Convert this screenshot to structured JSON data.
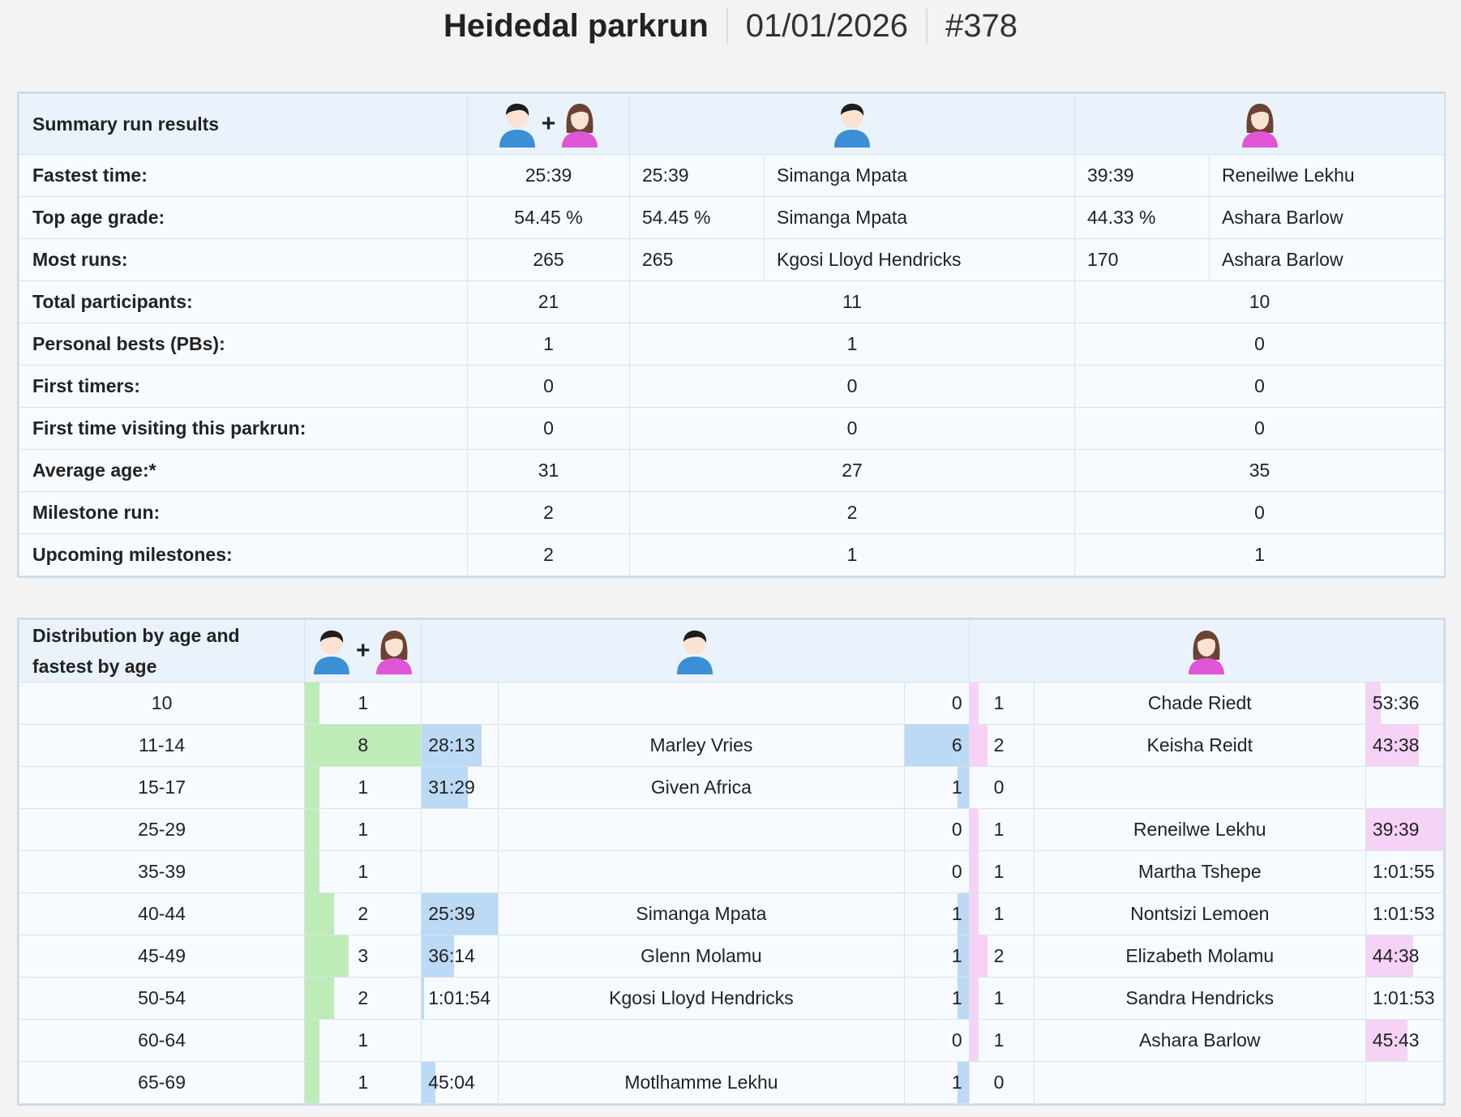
{
  "header": {
    "title": "Heidedal parkrun",
    "date": "01/01/2026",
    "run_number": "#378"
  },
  "colors": {
    "total_bar": "#bdecb6",
    "male_bar": "#bcd9f5",
    "female_bar": "#f6d2f6",
    "male_shirt": "#3a8fd6",
    "female_shirt": "#e055d6"
  },
  "icons": {
    "all": "male-and-female-icons",
    "male": "male-runner-icon",
    "female": "female-runner-icon",
    "plus": "+"
  },
  "summary": {
    "title": "Summary run results",
    "rows": [
      {
        "label": "Fastest time:",
        "all": "25:39",
        "male_val": "25:39",
        "male_name": "Simanga Mpata",
        "female_val": "39:39",
        "female_name": "Reneilwe Lekhu"
      },
      {
        "label": "Top age grade:",
        "all": "54.45 %",
        "male_val": "54.45 %",
        "male_name": "Simanga Mpata",
        "female_val": "44.33 %",
        "female_name": "Ashara Barlow"
      },
      {
        "label": "Most runs:",
        "all": "265",
        "male_val": "265",
        "male_name": "Kgosi Lloyd Hendricks",
        "female_val": "170",
        "female_name": "Ashara Barlow"
      },
      {
        "label": "Total participants:",
        "all": "21",
        "male": "11",
        "female": "10"
      },
      {
        "label": "Personal bests (PBs):",
        "all": "1",
        "male": "1",
        "female": "0"
      },
      {
        "label": "First timers:",
        "all": "0",
        "male": "0",
        "female": "0"
      },
      {
        "label": "First time visiting this parkrun:",
        "all": "0",
        "male": "0",
        "female": "0"
      },
      {
        "label": "Average age:*",
        "all": "31",
        "male": "27",
        "female": "35"
      },
      {
        "label": "Milestone run:",
        "all": "2",
        "male": "2",
        "female": "0"
      },
      {
        "label": "Upcoming milestones:",
        "all": "2",
        "male": "1",
        "female": "1"
      }
    ]
  },
  "distribution": {
    "title": "Distribution by age and fastest by age",
    "title_line1": "Distribution by age and",
    "title_line2": "fastest by age",
    "rows": [
      {
        "age": "10",
        "total": "1",
        "m_time": "",
        "m_name": "",
        "m_count": "0",
        "f_count": "1",
        "f_name": "Chade Riedt",
        "f_time": "53:36",
        "m_time_frac": 0,
        "f_time_frac": 0.19
      },
      {
        "age": "11-14",
        "total": "8",
        "m_time": "28:13",
        "m_name": "Marley Vries",
        "m_count": "6",
        "f_count": "2",
        "f_name": "Keisha Reidt",
        "f_time": "43:38",
        "m_time_frac": 0.78,
        "f_time_frac": 0.68
      },
      {
        "age": "15-17",
        "total": "1",
        "m_time": "31:29",
        "m_name": "Given Africa",
        "m_count": "1",
        "f_count": "0",
        "f_name": "",
        "f_time": "",
        "m_time_frac": 0.6,
        "f_time_frac": 0
      },
      {
        "age": "25-29",
        "total": "1",
        "m_time": "",
        "m_name": "",
        "m_count": "0",
        "f_count": "1",
        "f_name": "Reneilwe Lekhu",
        "f_time": "39:39",
        "m_time_frac": 0,
        "f_time_frac": 1.0
      },
      {
        "age": "35-39",
        "total": "1",
        "m_time": "",
        "m_name": "",
        "m_count": "0",
        "f_count": "1",
        "f_name": "Martha Tshepe",
        "f_time": "1:01:55",
        "m_time_frac": 0,
        "f_time_frac": 0
      },
      {
        "age": "40-44",
        "total": "2",
        "m_time": "25:39",
        "m_name": "Simanga Mpata",
        "m_count": "1",
        "f_count": "1",
        "f_name": "Nontsizi Lemoen",
        "f_time": "1:01:53",
        "m_time_frac": 1.0,
        "f_time_frac": 0
      },
      {
        "age": "45-49",
        "total": "3",
        "m_time": "36:14",
        "m_name": "Glenn Molamu",
        "m_count": "1",
        "f_count": "2",
        "f_name": "Elizabeth Molamu",
        "f_time": "44:38",
        "m_time_frac": 0.42,
        "f_time_frac": 0.61
      },
      {
        "age": "50-54",
        "total": "2",
        "m_time": "1:01:54",
        "m_name": "Kgosi Lloyd Hendricks",
        "m_count": "1",
        "f_count": "1",
        "f_name": "Sandra Hendricks",
        "f_time": "1:01:53",
        "m_time_frac": 0.03,
        "f_time_frac": 0
      },
      {
        "age": "60-64",
        "total": "1",
        "m_time": "",
        "m_name": "",
        "m_count": "0",
        "f_count": "1",
        "f_name": "Ashara Barlow",
        "f_time": "45:43",
        "m_time_frac": 0,
        "f_time_frac": 0.54
      },
      {
        "age": "65-69",
        "total": "1",
        "m_time": "45:04",
        "m_name": "Motlhamme Lekhu",
        "m_count": "1",
        "f_count": "0",
        "f_name": "",
        "f_time": "",
        "m_time_frac": 0.18,
        "f_time_frac": 0
      }
    ],
    "max_total": 8,
    "max_male": 6,
    "max_female": 2
  }
}
